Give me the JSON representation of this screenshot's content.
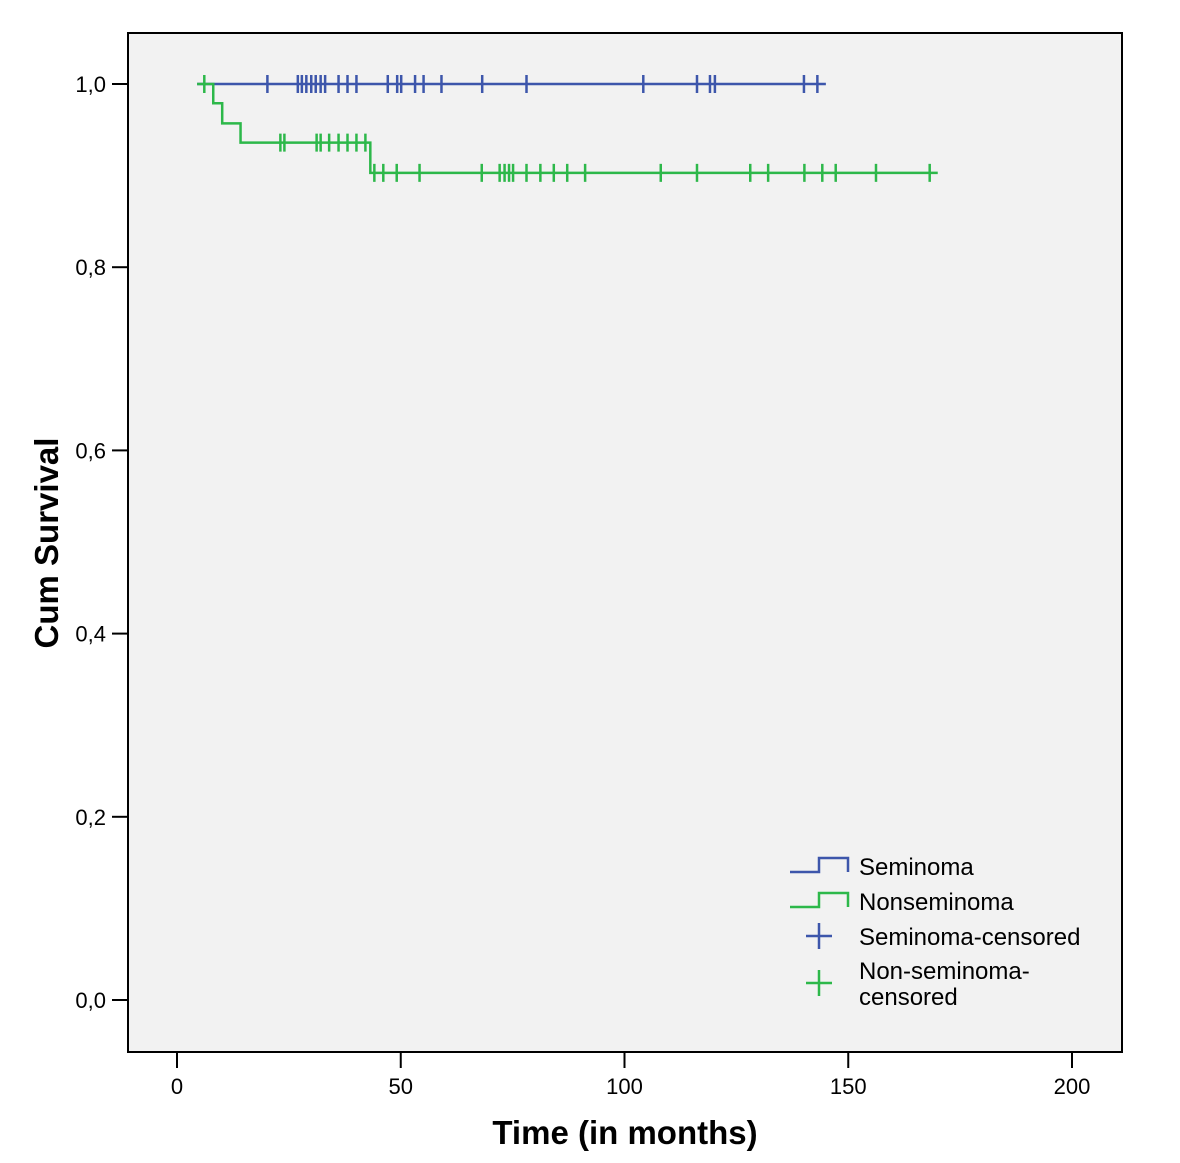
{
  "chart_data": {
    "type": "line",
    "subtype": "kaplan-meier-step",
    "xlabel": "Time (in months)",
    "ylabel": "Cum Survival",
    "xlim": [
      -11,
      211
    ],
    "ylim": [
      -0.056,
      1.056
    ],
    "x_ticks": [
      0,
      50,
      100,
      150,
      200
    ],
    "x_tick_labels": [
      "0",
      "50",
      "100",
      "150",
      "200"
    ],
    "y_ticks": [
      0,
      0.2,
      0.4,
      0.6,
      0.8,
      1.0
    ],
    "y_tick_labels": [
      "0,0",
      "0,2",
      "0,4",
      "0,6",
      "0,8",
      "1,0"
    ],
    "grid": false,
    "background": "#f2f2f2",
    "legend_position": "bottom-right",
    "legend": [
      "Seminoma",
      "Nonseminoma",
      "Seminoma-censored",
      "Non-seminoma-\ncensored"
    ],
    "legend_lines": [
      "Seminoma",
      "Nonseminoma",
      "Seminoma-censored",
      "Non-seminoma-",
      "censored"
    ],
    "series": [
      {
        "name": "Seminoma",
        "color": "#3d56ab",
        "steps": [
          [
            4.5,
            1.0
          ],
          [
            145,
            1.0
          ]
        ],
        "censored": {
          "x": [
            20.2,
            27.0,
            27.9,
            28.9,
            30.0,
            31.0,
            32.1,
            33.1,
            36.1,
            38.1,
            40.1,
            47.1,
            49.2,
            50.1,
            53.2,
            55.1,
            59.1,
            68.2,
            78.1,
            104.2,
            116.2,
            119.1,
            120.2,
            140.1,
            143.1
          ],
          "y": 1.0
        }
      },
      {
        "name": "Nonseminoma",
        "color": "#2db84a",
        "steps": [
          [
            4.5,
            1.0
          ],
          [
            8.1,
            0.979
          ],
          [
            10.1,
            0.957
          ],
          [
            14.2,
            0.936
          ],
          [
            43.2,
            0.903
          ],
          [
            170,
            0.903
          ]
        ],
        "censored": {
          "points": [
            [
              6.1,
              1.0
            ],
            [
              23.1,
              0.936
            ],
            [
              24.0,
              0.936
            ],
            [
              31.2,
              0.936
            ],
            [
              32.1,
              0.936
            ],
            [
              34.0,
              0.936
            ],
            [
              36.1,
              0.936
            ],
            [
              38.1,
              0.936
            ],
            [
              40.1,
              0.936
            ],
            [
              42.1,
              0.936
            ],
            [
              44.1,
              0.903
            ],
            [
              46.1,
              0.903
            ],
            [
              49.1,
              0.903
            ],
            [
              54.2,
              0.903
            ],
            [
              68.1,
              0.903
            ],
            [
              72.1,
              0.903
            ],
            [
              73.2,
              0.903
            ],
            [
              74.2,
              0.903
            ],
            [
              75.1,
              0.903
            ],
            [
              78.1,
              0.903
            ],
            [
              81.2,
              0.903
            ],
            [
              84.2,
              0.903
            ],
            [
              87.2,
              0.903
            ],
            [
              91.2,
              0.903
            ],
            [
              108.1,
              0.903
            ],
            [
              116.2,
              0.903
            ],
            [
              128.1,
              0.903
            ],
            [
              132.1,
              0.903
            ],
            [
              140.2,
              0.903
            ],
            [
              144.2,
              0.903
            ],
            [
              147.2,
              0.903
            ],
            [
              156.2,
              0.903
            ],
            [
              168.2,
              0.903
            ]
          ]
        }
      }
    ]
  }
}
